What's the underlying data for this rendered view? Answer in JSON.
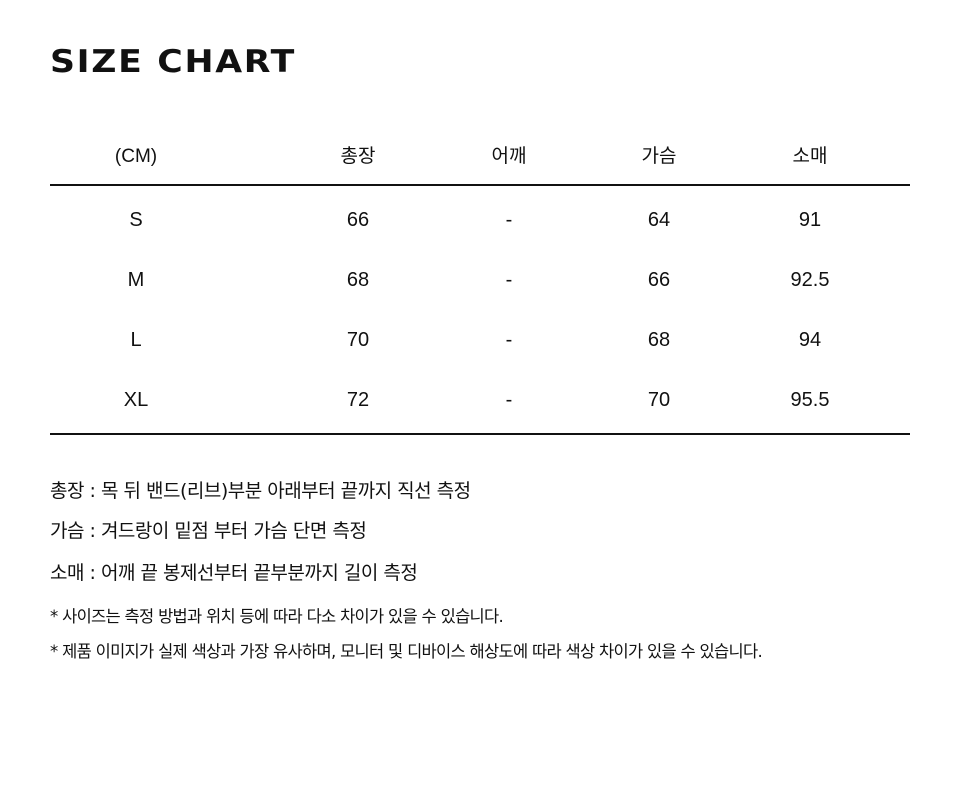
{
  "title": "SIZE CHART",
  "table": {
    "headers": [
      "(CM)",
      "총장",
      "어깨",
      "가슴",
      "소매"
    ],
    "rows": [
      [
        "S",
        "66",
        "-",
        "64",
        "91"
      ],
      [
        "M",
        "68",
        "-",
        "66",
        "92.5"
      ],
      [
        "L",
        "70",
        "-",
        "68",
        "94"
      ],
      [
        "XL",
        "72",
        "-",
        "70",
        "95.5"
      ]
    ]
  },
  "notes": [
    "총장 : 목 뒤 밴드(리브)부분 아래부터 끝까지 직선 측정",
    "가슴 : 겨드랑이 밑점 부터 가슴 단면 측정",
    "소매 : 어깨 끝 봉제선부터 끝부분까지 길이 측정"
  ],
  "disclaimers": [
    "* 사이즈는 측정 방법과 위치 등에 따라 다소 차이가 있을 수 있습니다.",
    "* 제품 이미지가 실제 색상과 가장 유사하며, 모니터 및 디바이스 해상도에 따라 색상 차이가 있을 수 있습니다."
  ]
}
